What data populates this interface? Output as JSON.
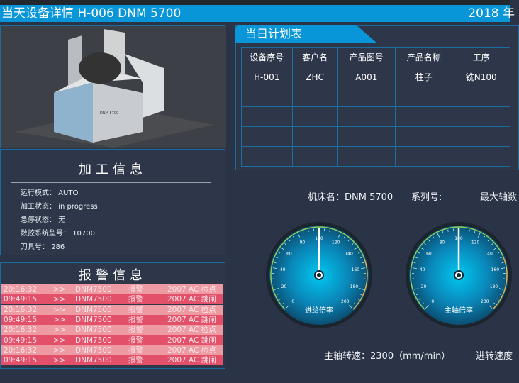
{
  "header": {
    "title": "当天设备详情  H-006   DNM 5700",
    "date": "2018 年"
  },
  "info": {
    "title": "加工信息",
    "rows": [
      {
        "label": "运行模式：",
        "value": "AUTO"
      },
      {
        "label": "加工状态：",
        "value": "in progress"
      },
      {
        "label": "急停状态：",
        "value": "无"
      },
      {
        "label": "数控系统型号：",
        "value": "10700"
      },
      {
        "label": "刀具号：",
        "value": "286"
      }
    ]
  },
  "alarm": {
    "title": "报警信息",
    "rows": [
      {
        "time": "20:16:32",
        "arrow": ">>",
        "machine": "DNM7500",
        "type": "报警",
        "code": "2007  AC 检点"
      },
      {
        "time": "09:49:15",
        "arrow": ">>",
        "machine": "DNM7500",
        "type": "报警",
        "code": "2007  AC 跳闸"
      },
      {
        "time": "20:16:32",
        "arrow": ">>",
        "machine": "DNM7500",
        "type": "报警",
        "code": "2007  AC 检点"
      },
      {
        "time": "09:49:15",
        "arrow": ">>",
        "machine": "DNM7500",
        "type": "报警",
        "code": "2007  AC 跳闸"
      },
      {
        "time": "20:16:32",
        "arrow": ">>",
        "machine": "DNM7500",
        "type": "报警",
        "code": "2007  AC 检点"
      },
      {
        "time": "09:49:15",
        "arrow": ">>",
        "machine": "DNM7500",
        "type": "报警",
        "code": "2007  AC 跳闸"
      },
      {
        "time": "20:16:32",
        "arrow": ">>",
        "machine": "DNM7500",
        "type": "报警",
        "code": "2007  AC 检点"
      },
      {
        "time": "09:49:15",
        "arrow": ">>",
        "machine": "DNM7500",
        "type": "报警",
        "code": "2007  AC 跳闸"
      }
    ],
    "colors": {
      "light": "#ee9aa3",
      "dark": "#e2506a"
    }
  },
  "plan": {
    "title": "当日计划表",
    "columns": [
      "设备序号",
      "客户名",
      "产品图号",
      "产品名称",
      "工序"
    ],
    "rows": [
      [
        "H-001",
        "ZHC",
        "A001",
        "柱子",
        "铣N100"
      ],
      [
        "",
        "",
        "",
        "",
        ""
      ],
      [
        "",
        "",
        "",
        "",
        ""
      ],
      [
        "",
        "",
        "",
        "",
        ""
      ],
      [
        "",
        "",
        "",
        "",
        ""
      ]
    ]
  },
  "machine": {
    "name": "机床名：DNM 5700",
    "series": "系列号:",
    "maxaxis": "最大轴数",
    "brand": "DNM 5700"
  },
  "gauges": [
    {
      "label": "进给倍率",
      "value": 100,
      "min": 0,
      "max": 200,
      "step": 20
    },
    {
      "label": "主轴倍率",
      "value": 100,
      "min": 0,
      "max": 200,
      "step": 20
    }
  ],
  "speeds": {
    "spindle": "主轴转速：2300（mm/min）",
    "feed": "进转速度"
  },
  "colors": {
    "accent": "#0996d8",
    "background": "#2b3446"
  }
}
